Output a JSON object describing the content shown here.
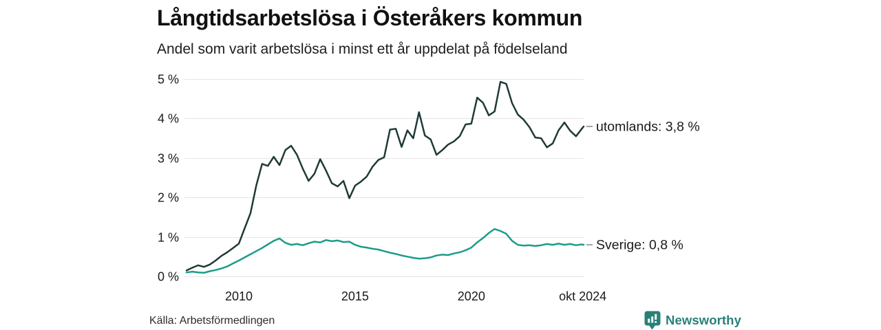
{
  "header": {
    "title": "Långtidsarbetslösa i Österåkers kommun",
    "subtitle": "Andel som varit arbetslösa i minst ett år uppdelat på födelseland"
  },
  "footer": {
    "source": "Källa: Arbetsförmedlingen",
    "brand": "Newsworthy"
  },
  "colors": {
    "utomlands_line": "#1f3a36",
    "sverige_line": "#1a9c88",
    "gridline": "#e4e4e4",
    "tick_text": "#1a1a1a",
    "label_dash": "#8f8f8f",
    "brand_teal": "#2a7f78"
  },
  "chart_data": {
    "type": "line",
    "title": "Långtidsarbetslösa i Österåkers kommun",
    "subtitle": "Andel som varit arbetslösa i minst ett år uppdelat på födelseland",
    "xlabel": "",
    "ylabel": "",
    "grid": "horizontal",
    "legend_position": "right-of-line-ends",
    "x_range": [
      2007.75,
      2024.83
    ],
    "ylim": [
      0,
      5
    ],
    "y_ticks": {
      "values": [
        0,
        1,
        2,
        3,
        4,
        5
      ],
      "labels": [
        "0 %",
        "1 %",
        "2 %",
        "3 %",
        "4 %",
        "5 %"
      ]
    },
    "x_ticks": [
      {
        "year": 2010,
        "label": "2010"
      },
      {
        "year": 2015,
        "label": "2015"
      },
      {
        "year": 2020,
        "label": "2020"
      },
      {
        "year": 2024.79,
        "label": "okt 2024"
      }
    ],
    "series": [
      {
        "name": "utomlands",
        "color": "#1f3a36",
        "end_label": "utomlands: 3,8 %",
        "end_value": "3,8 %",
        "x": [
          2007.75,
          2008.0,
          2008.25,
          2008.5,
          2008.75,
          2009.0,
          2009.25,
          2009.5,
          2009.75,
          2010.0,
          2010.25,
          2010.5,
          2010.75,
          2011.0,
          2011.25,
          2011.5,
          2011.75,
          2012.0,
          2012.25,
          2012.5,
          2012.75,
          2013.0,
          2013.25,
          2013.5,
          2013.75,
          2014.0,
          2014.25,
          2014.5,
          2014.75,
          2015.0,
          2015.25,
          2015.5,
          2015.75,
          2016.0,
          2016.25,
          2016.5,
          2016.75,
          2017.0,
          2017.25,
          2017.5,
          2017.75,
          2018.0,
          2018.25,
          2018.5,
          2018.75,
          2019.0,
          2019.25,
          2019.5,
          2019.75,
          2020.0,
          2020.25,
          2020.5,
          2020.75,
          2021.0,
          2021.25,
          2021.5,
          2021.75,
          2022.0,
          2022.25,
          2022.5,
          2022.75,
          2023.0,
          2023.25,
          2023.5,
          2023.75,
          2024.0,
          2024.25,
          2024.5,
          2024.75,
          2024.83
        ],
        "values": [
          0.15,
          0.22,
          0.28,
          0.24,
          0.3,
          0.4,
          0.52,
          0.61,
          0.72,
          0.83,
          1.22,
          1.6,
          2.3,
          2.85,
          2.8,
          3.03,
          2.82,
          3.2,
          3.31,
          3.08,
          2.73,
          2.42,
          2.6,
          2.97,
          2.68,
          2.36,
          2.28,
          2.42,
          1.98,
          2.3,
          2.4,
          2.53,
          2.78,
          2.95,
          3.02,
          3.72,
          3.74,
          3.28,
          3.7,
          3.5,
          4.16,
          3.57,
          3.47,
          3.08,
          3.2,
          3.34,
          3.42,
          3.55,
          3.85,
          3.87,
          4.53,
          4.4,
          4.08,
          4.18,
          4.93,
          4.88,
          4.39,
          4.1,
          3.97,
          3.78,
          3.52,
          3.5,
          3.27,
          3.37,
          3.7,
          3.9,
          3.69,
          3.55,
          3.74,
          3.8
        ]
      },
      {
        "name": "Sverige",
        "color": "#1a9c88",
        "end_label": "Sverige: 0,8 %",
        "end_value": "0,8 %",
        "x": [
          2007.75,
          2008.0,
          2008.25,
          2008.5,
          2008.75,
          2009.0,
          2009.25,
          2009.5,
          2009.75,
          2010.0,
          2010.25,
          2010.5,
          2010.75,
          2011.0,
          2011.25,
          2011.5,
          2011.75,
          2012.0,
          2012.25,
          2012.5,
          2012.75,
          2013.0,
          2013.25,
          2013.5,
          2013.75,
          2014.0,
          2014.25,
          2014.5,
          2014.75,
          2015.0,
          2015.25,
          2015.5,
          2015.75,
          2016.0,
          2016.25,
          2016.5,
          2016.75,
          2017.0,
          2017.25,
          2017.5,
          2017.75,
          2018.0,
          2018.25,
          2018.5,
          2018.75,
          2019.0,
          2019.25,
          2019.5,
          2019.75,
          2020.0,
          2020.25,
          2020.5,
          2020.75,
          2021.0,
          2021.25,
          2021.5,
          2021.75,
          2022.0,
          2022.25,
          2022.5,
          2022.75,
          2023.0,
          2023.25,
          2023.5,
          2023.75,
          2024.0,
          2024.25,
          2024.5,
          2024.75,
          2024.83
        ],
        "values": [
          0.1,
          0.12,
          0.1,
          0.09,
          0.13,
          0.16,
          0.2,
          0.25,
          0.33,
          0.4,
          0.48,
          0.56,
          0.64,
          0.72,
          0.81,
          0.9,
          0.96,
          0.85,
          0.8,
          0.82,
          0.79,
          0.84,
          0.88,
          0.86,
          0.92,
          0.89,
          0.91,
          0.87,
          0.88,
          0.8,
          0.75,
          0.73,
          0.7,
          0.68,
          0.64,
          0.6,
          0.57,
          0.53,
          0.5,
          0.47,
          0.45,
          0.46,
          0.48,
          0.53,
          0.55,
          0.54,
          0.58,
          0.61,
          0.66,
          0.73,
          0.86,
          0.97,
          1.1,
          1.2,
          1.15,
          1.08,
          0.9,
          0.8,
          0.78,
          0.79,
          0.77,
          0.79,
          0.82,
          0.8,
          0.83,
          0.8,
          0.82,
          0.79,
          0.81,
          0.8
        ]
      }
    ]
  }
}
